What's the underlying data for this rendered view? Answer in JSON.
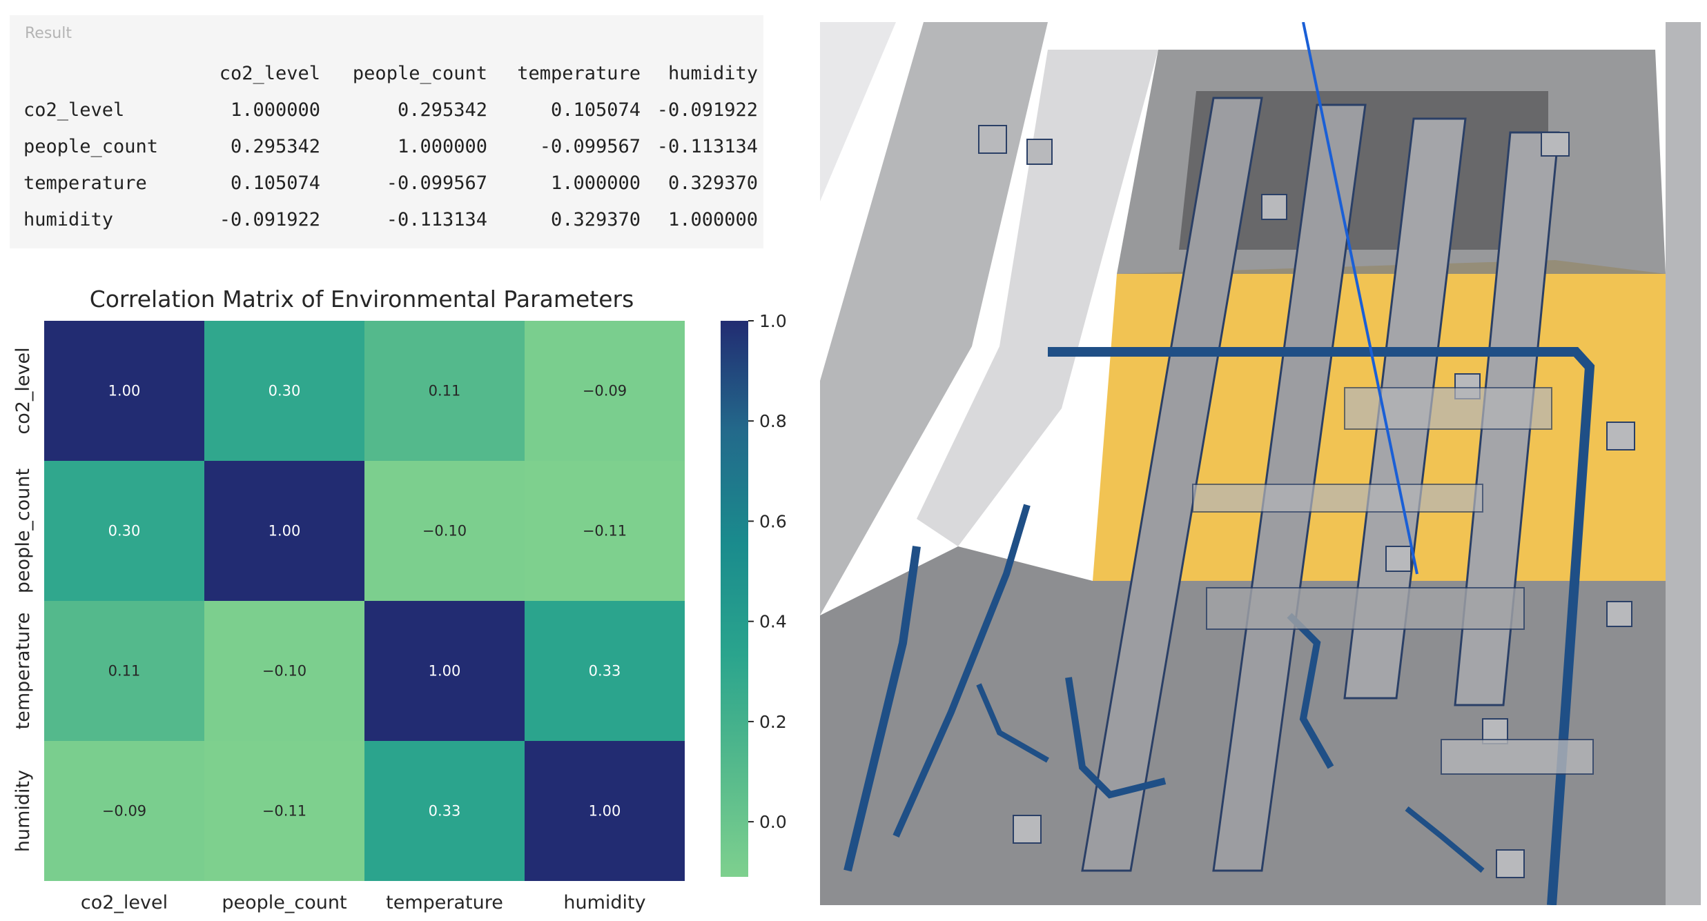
{
  "result": {
    "label": "Result",
    "columns": [
      "co2_level",
      "people_count",
      "temperature",
      "humidity"
    ],
    "rows": [
      {
        "name": "co2_level",
        "values": [
          "1.000000",
          "0.295342",
          "0.105074",
          "-0.091922"
        ]
      },
      {
        "name": "people_count",
        "values": [
          "0.295342",
          "1.000000",
          "-0.099567",
          "-0.113134"
        ]
      },
      {
        "name": "temperature",
        "values": [
          "0.105074",
          "-0.099567",
          "1.000000",
          "0.329370"
        ]
      },
      {
        "name": "humidity",
        "values": [
          "-0.091922",
          "-0.113134",
          "0.329370",
          "1.000000"
        ]
      }
    ]
  },
  "chart_data": {
    "type": "heatmap",
    "title": "Correlation Matrix of Environmental Parameters",
    "x_labels": [
      "co2_level",
      "people_count",
      "temperature",
      "humidity"
    ],
    "y_labels": [
      "co2_level",
      "people_count",
      "temperature",
      "humidity"
    ],
    "values": [
      [
        1.0,
        0.3,
        0.11,
        -0.09
      ],
      [
        0.3,
        1.0,
        -0.1,
        -0.11
      ],
      [
        0.11,
        -0.1,
        1.0,
        0.33
      ],
      [
        -0.09,
        -0.11,
        0.33,
        1.0
      ]
    ],
    "annotations": [
      [
        "1.00",
        "0.30",
        "0.11",
        "−0.09"
      ],
      [
        "0.30",
        "1.00",
        "−0.10",
        "−0.11"
      ],
      [
        "0.11",
        "−0.10",
        "1.00",
        "0.33"
      ],
      [
        "−0.09",
        "−0.11",
        "0.33",
        "1.00"
      ]
    ],
    "colorbar": {
      "vmin": -0.11,
      "vmax": 1.0,
      "ticks": [
        1.0,
        0.8,
        0.6,
        0.4,
        0.2,
        0.0
      ],
      "tick_labels": [
        "1.0",
        "0.8",
        "0.6",
        "0.4",
        "0.2",
        "0.0"
      ],
      "colormap": "crest"
    }
  },
  "viewport": {
    "floor_color": "#f0c04a",
    "duct_color": "#1f4f86",
    "wall_color": "#9a9ca0",
    "axis_color": "#1a5fd6"
  }
}
